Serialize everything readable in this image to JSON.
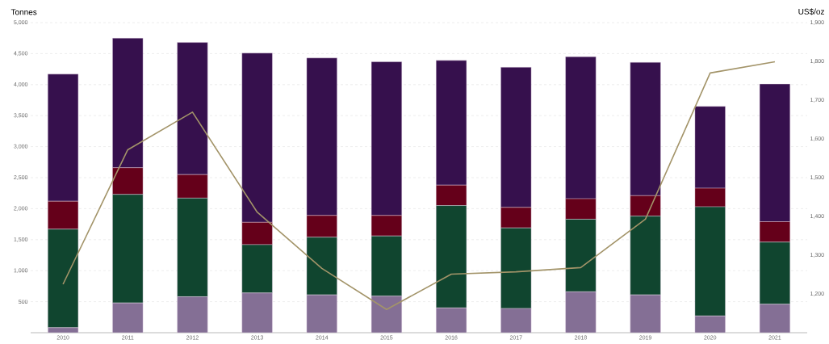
{
  "chart_data": {
    "type": "bar",
    "stacked": true,
    "grid": "y",
    "ylabel": "Tonnes",
    "y2label": "US$/oz",
    "categories": [
      "2010",
      "2011",
      "2012",
      "2013",
      "2014",
      "2015",
      "2016",
      "2017",
      "2018",
      "2019",
      "2020",
      "2021"
    ],
    "ylim": [
      0,
      5000
    ],
    "yticks": [
      {
        "value": 500,
        "label": "500"
      },
      {
        "value": 1000,
        "label": "1,000"
      },
      {
        "value": 1500,
        "label": "1,500"
      },
      {
        "value": 2000,
        "label": "2,000"
      },
      {
        "value": 2500,
        "label": "2,500"
      },
      {
        "value": 3000,
        "label": "3,000"
      },
      {
        "value": 3500,
        "label": "3,500"
      },
      {
        "value": 4000,
        "label": "4,000"
      },
      {
        "value": 4500,
        "label": "4,500"
      },
      {
        "value": 5000,
        "label": "5,000"
      }
    ],
    "y2lim": [
      1100,
      1900
    ],
    "y2ticks": [
      {
        "value": 1200,
        "label": "1,200"
      },
      {
        "value": 1300,
        "label": "1,300"
      },
      {
        "value": 1400,
        "label": "1,400"
      },
      {
        "value": 1500,
        "label": "1,500"
      },
      {
        "value": 1600,
        "label": "1,600"
      },
      {
        "value": 1700,
        "label": "1,700"
      },
      {
        "value": 1800,
        "label": "1,800"
      },
      {
        "value": 1900,
        "label": "1,900"
      }
    ],
    "series": [
      {
        "color": "#846f95",
        "values": [
          80,
          480,
          580,
          640,
          610,
          590,
          400,
          390,
          660,
          610,
          270,
          460
        ]
      },
      {
        "color": "#10452f",
        "values": [
          1590,
          1750,
          1590,
          780,
          930,
          970,
          1650,
          1300,
          1170,
          1270,
          1760,
          1000
        ]
      },
      {
        "color": "#65001a",
        "values": [
          450,
          430,
          380,
          360,
          350,
          330,
          330,
          330,
          330,
          330,
          300,
          330
        ]
      },
      {
        "color": "#36104d",
        "values": [
          2050,
          2090,
          2130,
          2730,
          2540,
          2480,
          2010,
          2260,
          2290,
          2150,
          1320,
          2220
        ]
      },
      {
        "type": "line",
        "axis": "y2",
        "color": "#a39469",
        "values": [
          1225,
          1572,
          1669,
          1411,
          1266,
          1160,
          1251,
          1257,
          1268,
          1393,
          1770,
          1799
        ]
      }
    ]
  }
}
